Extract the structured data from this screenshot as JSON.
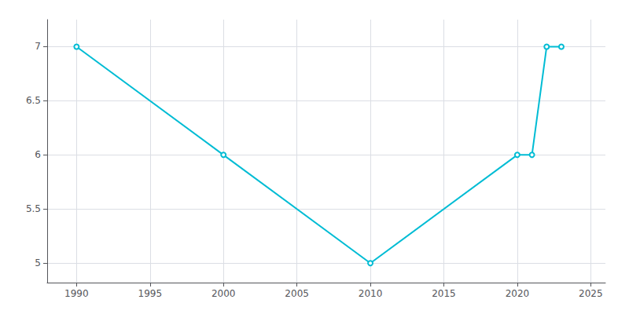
{
  "chart_data": {
    "type": "line",
    "x": [
      1990,
      2000,
      2010,
      2020,
      2021,
      2022,
      2023
    ],
    "values": [
      7,
      6,
      5,
      6,
      6,
      7,
      7
    ],
    "color": "#00bcd4",
    "xlim": [
      1988,
      2026
    ],
    "ylim": [
      4.82,
      7.25
    ],
    "xticks": [
      1990,
      1995,
      2000,
      2005,
      2010,
      2015,
      2020,
      2025
    ],
    "yticks": [
      5.0,
      5.5,
      6.0,
      6.5,
      7.0
    ],
    "grid": true
  }
}
